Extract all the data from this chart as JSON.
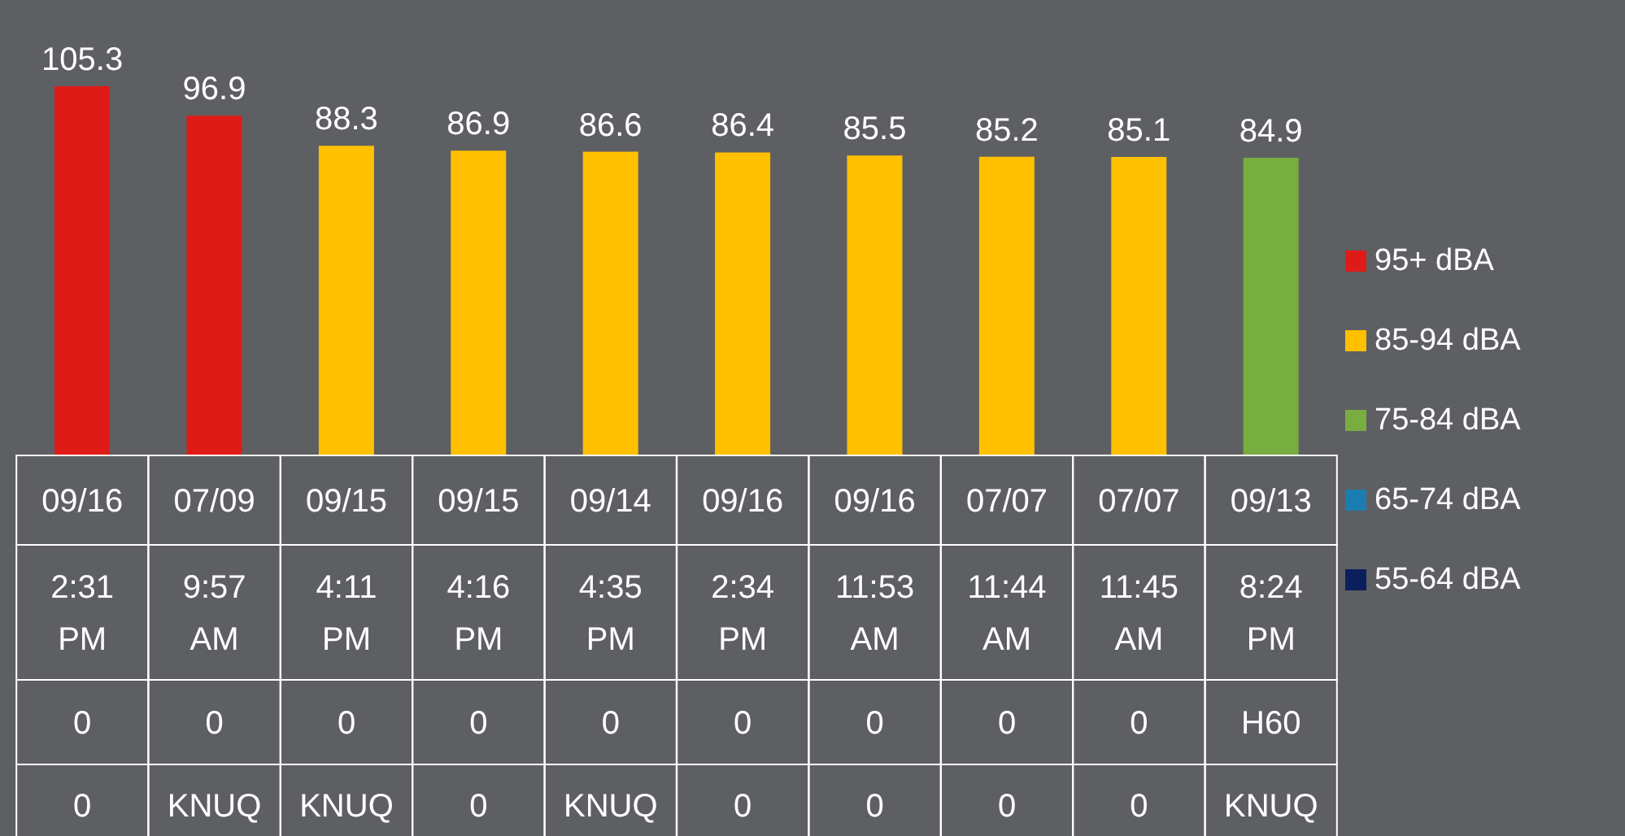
{
  "chart_data": {
    "type": "bar",
    "stacked": true,
    "data_labels": true,
    "legend": "right",
    "categories": [
      "09/16\n2:31 PM\n0\n0",
      "07/09\n9:57 AM\n0\nKNUQ",
      "09/15\n4:11 PM\n0\nKNUQ",
      "09/15\n4:16 PM\n0\n0",
      "09/14\n4:35 PM\n0\nKNUQ",
      "09/16\n2:34 PM\n0\n0",
      "09/16\n11:53 AM\n0\n0",
      "07/07\n11:44 AM\n0\n0",
      "07/07\n11:45 AM\n0\n0",
      "09/13\n8:24 PM\nH60\nKNUQ"
    ],
    "series": [
      {
        "name": "95+ dBA",
        "color": "#df1b17",
        "values": [
          105.3,
          96.9,
          null,
          null,
          null,
          null,
          null,
          null,
          null,
          null
        ]
      },
      {
        "name": "85-94 dBA",
        "color": "#ffc000",
        "values": [
          null,
          null,
          88.3,
          86.9,
          86.6,
          86.4,
          85.5,
          85.2,
          85.1,
          null
        ]
      },
      {
        "name": "75-84 dBA",
        "color": "#78ad3f",
        "values": [
          null,
          null,
          null,
          null,
          null,
          null,
          null,
          null,
          null,
          84.9
        ]
      },
      {
        "name": "65-74 dBA",
        "color": "#1b7db0",
        "values": [
          null,
          null,
          null,
          null,
          null,
          null,
          null,
          null,
          null,
          null
        ]
      },
      {
        "name": "55-64 dBA",
        "color": "#0b1f5c",
        "values": [
          null,
          null,
          null,
          null,
          null,
          null,
          null,
          null,
          null,
          null
        ]
      }
    ]
  }
}
